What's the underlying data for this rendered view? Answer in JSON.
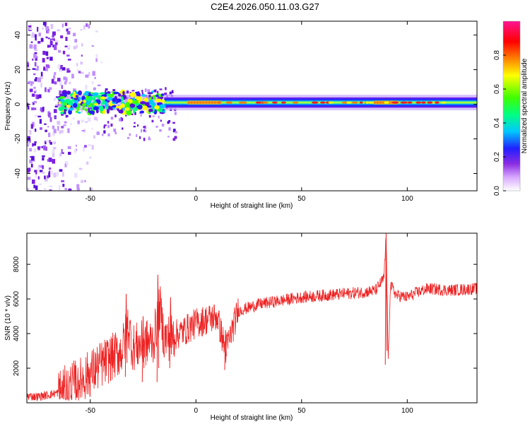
{
  "title": "C2E4.2026.050.11.03.G27",
  "chart_data": [
    {
      "type": "heatmap",
      "xlabel": "Height of straight line (km)",
      "ylabel": "Frequency (Hz)",
      "xlim": [
        -80,
        133
      ],
      "ylim": [
        -50,
        48
      ],
      "xticks": [
        -50,
        0,
        50,
        100
      ],
      "yticks": [
        -40,
        -20,
        0,
        20,
        40
      ],
      "colorbar": {
        "label": "Normalized spectral amplitude",
        "range": [
          0,
          1
        ],
        "ticks": [
          "0.0",
          "0.2",
          "0.4",
          "0.6",
          "0.8"
        ],
        "tick_values": [
          0,
          0.2,
          0.4,
          0.6,
          0.8
        ],
        "colormap": [
          "#ffffff",
          "#d8a8ff",
          "#8a2be2",
          "#2020ff",
          "#00c8ff",
          "#00ff80",
          "#40ff00",
          "#ffff00",
          "#ff8000",
          "#ff0000",
          "#ff1493"
        ]
      },
      "band": {
        "center_freq_hz": 1,
        "half_width_hz": 3,
        "strong_segments_x": [
          [
            -3,
            12
          ],
          [
            85,
            96
          ]
        ],
        "noise_region_x": [
          -80,
          -45
        ]
      }
    },
    {
      "type": "line",
      "xlabel": "Height of straight line (km)",
      "ylabel": "SNR (10 * v/v)",
      "xlim": [
        -80,
        133
      ],
      "ylim": [
        0,
        9800
      ],
      "xticks": [
        -50,
        0,
        50,
        100
      ],
      "yticks": [
        2000,
        4000,
        6000,
        8000
      ],
      "color": "#ee2222",
      "x": [
        -80,
        -75,
        -70,
        -65,
        -60,
        -55,
        -50,
        -45,
        -40,
        -35,
        -32,
        -30,
        -25,
        -20,
        -17,
        -15,
        -10,
        -5,
        0,
        5,
        10,
        14,
        20,
        25,
        30,
        40,
        50,
        60,
        70,
        80,
        85,
        89,
        90,
        91,
        92,
        95,
        100,
        105,
        110,
        120,
        133
      ],
      "y": [
        400,
        350,
        450,
        600,
        900,
        1300,
        1700,
        2200,
        2600,
        3000,
        4500,
        3200,
        3400,
        3600,
        5500,
        3700,
        3900,
        4200,
        4600,
        4800,
        5000,
        3000,
        5300,
        5500,
        5700,
        5900,
        6100,
        6200,
        6300,
        6400,
        6500,
        7200,
        9700,
        2200,
        6800,
        6200,
        6100,
        6400,
        6600,
        6500,
        6600
      ],
      "spikes": [
        {
          "x": -33,
          "high": 6300,
          "low": 1500
        },
        {
          "x": -25,
          "high": 5000,
          "low": 1200
        },
        {
          "x": -18,
          "high": 7400,
          "low": 1200
        },
        {
          "x": -12,
          "high": 6100,
          "low": 2000
        },
        {
          "x": 14,
          "high": 4200,
          "low": 1900
        },
        {
          "x": 90,
          "high": 9800,
          "low": 2200
        }
      ]
    }
  ]
}
